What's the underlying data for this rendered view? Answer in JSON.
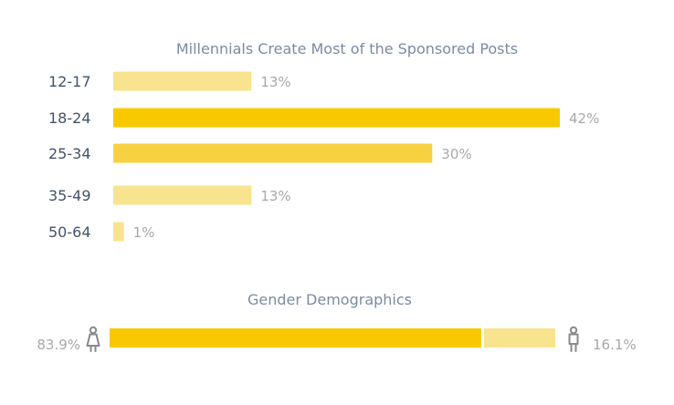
{
  "chart_data": [
    {
      "type": "bar",
      "orientation": "horizontal",
      "title": "Millennials Create Most of the Sponsored Posts",
      "categories": [
        "12-17",
        "18-24",
        "25-34",
        "35-49",
        "50-64"
      ],
      "values": [
        13,
        42,
        30,
        13,
        1
      ],
      "value_labels": [
        "13%",
        "42%",
        "30%",
        "13%",
        "1%"
      ],
      "xlim": [
        0,
        42
      ],
      "highlight_color": "#f9c900",
      "secondary_color": "#f8d142",
      "muted_color": "#f8e38f"
    },
    {
      "type": "bar",
      "orientation": "horizontal-stacked",
      "title": "Gender Demographics",
      "categories": [
        "female",
        "male"
      ],
      "values": [
        83.9,
        16.1
      ],
      "value_labels": [
        "83.9%",
        "16.1%"
      ],
      "icons": [
        "female-icon",
        "male-icon"
      ],
      "colors": [
        "#f9c900",
        "#f8e38f"
      ]
    }
  ]
}
